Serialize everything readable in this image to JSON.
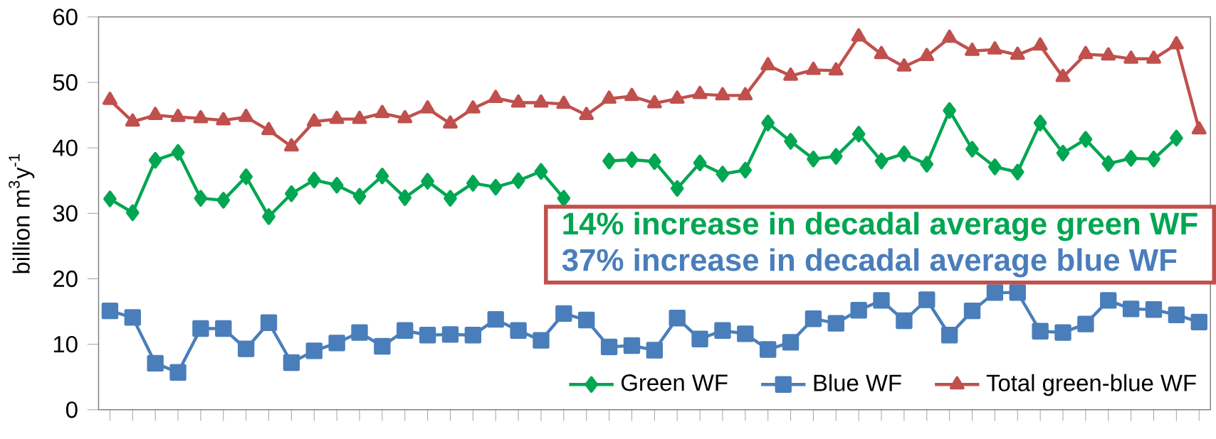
{
  "chart_data": {
    "type": "line",
    "ylabel": "billion m$^{3}$y$^{-1}$",
    "categories": [
      null,
      null,
      null,
      null,
      null,
      null,
      null,
      null,
      null,
      null,
      null,
      null,
      null,
      null,
      null,
      null,
      null,
      null,
      null,
      null,
      null,
      null,
      null,
      null,
      null,
      null,
      null,
      null,
      null,
      null,
      null,
      null,
      null,
      null,
      null,
      null,
      null,
      null,
      null,
      null,
      null,
      null,
      null,
      null,
      null,
      null,
      null,
      null,
      null
    ],
    "ylim": [
      0,
      60
    ],
    "yticks": [
      0,
      10,
      20,
      30,
      40,
      50,
      60
    ],
    "legend": "bottom right",
    "series": [
      {
        "name": "Green WF",
        "color": "#00a651",
        "marker": "diamond",
        "values": [
          32.2,
          30.1,
          38.1,
          39.3,
          32.3,
          32.0,
          35.6,
          29.5,
          33.0,
          35.1,
          34.3,
          32.6,
          35.7,
          32.4,
          34.9,
          32.3,
          34.6,
          34.0,
          35.0,
          36.4,
          32.3,
          null,
          38.0,
          38.2,
          37.9,
          33.8,
          37.7,
          36.0,
          36.6,
          43.8,
          41.0,
          38.3,
          38.7,
          42.1,
          38.0,
          39.1,
          37.5,
          45.7,
          39.8,
          37.1,
          36.3,
          43.8,
          39.2,
          41.3,
          37.6,
          38.4,
          38.3,
          41.5,
          null
        ]
      },
      {
        "name": "Blue WF",
        "color": "#4a7ebb",
        "marker": "square",
        "values": [
          15.1,
          14.1,
          7.1,
          5.7,
          12.4,
          12.4,
          9.3,
          13.3,
          7.2,
          9.0,
          10.2,
          11.8,
          9.7,
          12.1,
          11.4,
          11.5,
          11.4,
          13.8,
          12.1,
          10.6,
          14.7,
          13.7,
          9.6,
          9.8,
          9.1,
          14.0,
          10.8,
          12.1,
          11.6,
          9.2,
          10.3,
          13.9,
          13.2,
          15.2,
          16.7,
          13.6,
          16.8,
          11.4,
          15.1,
          17.9,
          17.9,
          12.0,
          11.8,
          13.1,
          16.7,
          15.4,
          15.3,
          14.5,
          13.4
        ]
      },
      {
        "name": "Total green-blue WF",
        "color": "#c0504d",
        "marker": "triangle",
        "values": [
          47.3,
          44.0,
          45.0,
          44.7,
          44.5,
          44.2,
          44.7,
          42.7,
          40.2,
          44.0,
          44.4,
          44.4,
          45.3,
          44.5,
          46.0,
          43.7,
          46.0,
          47.6,
          46.9,
          46.9,
          46.7,
          45.0,
          47.5,
          47.9,
          46.8,
          47.5,
          48.2,
          48.0,
          48.0,
          52.6,
          51.0,
          51.9,
          51.8,
          57.0,
          54.3,
          52.4,
          54.0,
          56.8,
          54.8,
          55.0,
          54.2,
          55.6,
          50.8,
          54.3,
          54.1,
          53.6,
          53.6,
          55.8,
          42.8
        ]
      }
    ],
    "annotations": [
      "14% increase in decadal average green WF",
      "37% increase in decadal average blue WF"
    ]
  }
}
